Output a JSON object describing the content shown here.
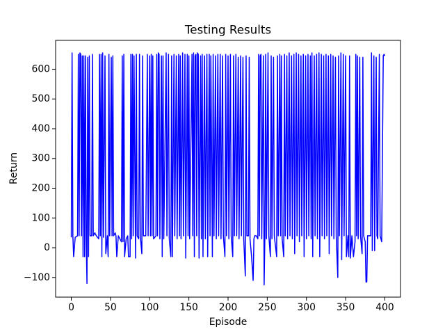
{
  "chart_data": {
    "type": "line",
    "title": "Testing Results",
    "x_label": "Episode",
    "y_label": "Return",
    "x": [
      0,
      1,
      2,
      3,
      5,
      8,
      9,
      10,
      11,
      12,
      13,
      14,
      15,
      16,
      17,
      18,
      19,
      20,
      21,
      22,
      23,
      24,
      26,
      27,
      28,
      30,
      32,
      35,
      36,
      37,
      38,
      39,
      40,
      41,
      43,
      44,
      46,
      47,
      48,
      49,
      51,
      52,
      53,
      54,
      56,
      57,
      58,
      60,
      62,
      64,
      65,
      66,
      67,
      68,
      70,
      72,
      73,
      75,
      76,
      77,
      78,
      79,
      80,
      82,
      83,
      84,
      86,
      87,
      88,
      90,
      91,
      92,
      95,
      97,
      98,
      100,
      101,
      102,
      103,
      104,
      105,
      108,
      109,
      110,
      111,
      112,
      113,
      115,
      116,
      117,
      118,
      121,
      122,
      124,
      125,
      127,
      128,
      129,
      131,
      132,
      134,
      135,
      137,
      138,
      139,
      140,
      142,
      143,
      145,
      146,
      148,
      149,
      150,
      151,
      154,
      155,
      156,
      157,
      158,
      159,
      160,
      161,
      162,
      163,
      165,
      166,
      167,
      168,
      170,
      171,
      173,
      174,
      176,
      177,
      178,
      180,
      181,
      182,
      184,
      185,
      187,
      188,
      190,
      191,
      193,
      194,
      196,
      197,
      198,
      200,
      201,
      203,
      204,
      206,
      207,
      208,
      210,
      211,
      213,
      214,
      216,
      217,
      219,
      220,
      222,
      223,
      224,
      226,
      227,
      228,
      230,
      232,
      233,
      234,
      236,
      238,
      239,
      240,
      241,
      242,
      243,
      245,
      246,
      247,
      248,
      249,
      251,
      252,
      254,
      255,
      256,
      258,
      259,
      262,
      263,
      264,
      266,
      267,
      268,
      269,
      271,
      272,
      273,
      275,
      276,
      278,
      279,
      281,
      282,
      284,
      285,
      287,
      288,
      290,
      291,
      293,
      294,
      296,
      297,
      299,
      300,
      302,
      303,
      305,
      306,
      307,
      308,
      310,
      311,
      313,
      314,
      316,
      317,
      319,
      320,
      322,
      323,
      325,
      326,
      328,
      329,
      331,
      332,
      334,
      335,
      337,
      338,
      340,
      341,
      342,
      344,
      345,
      347,
      348,
      350,
      351,
      353,
      354,
      355,
      356,
      358,
      360,
      362,
      363,
      364,
      365,
      366,
      368,
      369,
      371,
      372,
      373,
      375,
      376,
      377,
      378,
      380,
      382,
      383,
      384,
      386,
      387,
      389,
      390,
      391,
      393,
      394,
      396,
      398,
      399,
      400
    ],
    "series": [
      {
        "color": "#0000ff",
        "values": [
          35,
          655,
          40,
          -30,
          35,
          40,
          650,
          40,
          655,
          650,
          40,
          645,
          -30,
          645,
          -30,
          645,
          30,
          -120,
          640,
          -30,
          645,
          40,
          40,
          650,
          40,
          50,
          40,
          30,
          650,
          40,
          650,
          -30,
          655,
          35,
          645,
          -20,
          40,
          -30,
          650,
          40,
          640,
          40,
          645,
          40,
          50,
          40,
          -30,
          40,
          30,
          20,
          645,
          20,
          650,
          -30,
          30,
          40,
          -30,
          -30,
          650,
          30,
          650,
          40,
          645,
          -35,
          650,
          40,
          30,
          650,
          40,
          -20,
          645,
          40,
          40,
          650,
          40,
          645,
          40,
          650,
          40,
          645,
          30,
          40,
          650,
          40,
          655,
          650,
          30,
          645,
          -30,
          645,
          30,
          655,
          40,
          650,
          30,
          -30,
          645,
          -30,
          650,
          40,
          645,
          30,
          650,
          40,
          645,
          30,
          655,
          40,
          650,
          -35,
          650,
          40,
          645,
          30,
          650,
          40,
          655,
          -30,
          645,
          650,
          40,
          655,
          650,
          -35,
          645,
          30,
          650,
          -30,
          645,
          30,
          650,
          -30,
          650,
          40,
          645,
          -30,
          650,
          40,
          645,
          30,
          650,
          40,
          650,
          30,
          645,
          40,
          -30,
          650,
          40,
          645,
          30,
          650,
          40,
          -30,
          645,
          40,
          650,
          40,
          640,
          30,
          645,
          40,
          640,
          30,
          -95,
          645,
          40,
          40,
          640,
          30,
          -30,
          -110,
          30,
          40,
          40,
          30,
          650,
          40,
          645,
          650,
          30,
          645,
          -125,
          40,
          650,
          30,
          655,
          40,
          -30,
          645,
          30,
          640,
          40,
          -30,
          645,
          40,
          650,
          40,
          645,
          30,
          -30,
          650,
          40,
          645,
          30,
          655,
          40,
          645,
          30,
          650,
          -20,
          655,
          40,
          650,
          20,
          645,
          40,
          650,
          -30,
          645,
          30,
          650,
          40,
          645,
          30,
          655,
          -30,
          645,
          40,
          650,
          30,
          655,
          -30,
          650,
          40,
          645,
          30,
          650,
          40,
          645,
          -20,
          650,
          40,
          645,
          30,
          640,
          40,
          -100,
          645,
          40,
          655,
          -40,
          650,
          40,
          645,
          -30,
          40,
          -30,
          645,
          -35,
          40,
          -30,
          20,
          650,
          40,
          645,
          30,
          640,
          40,
          -20,
          640,
          40,
          20,
          -115,
          -115,
          40,
          40,
          40,
          655,
          -10,
          645,
          -10,
          640,
          40,
          30,
          650,
          40,
          20,
          645,
          650,
          645
        ]
      }
    ],
    "xlim": [
      -20,
      420
    ],
    "xticks": [
      0,
      50,
      100,
      150,
      200,
      250,
      300,
      350,
      400
    ],
    "ylim": [
      -166,
      697
    ],
    "yticks": [
      {
        "value": -100,
        "label": "−100"
      },
      0,
      100,
      200,
      300,
      400,
      500,
      600
    ]
  }
}
